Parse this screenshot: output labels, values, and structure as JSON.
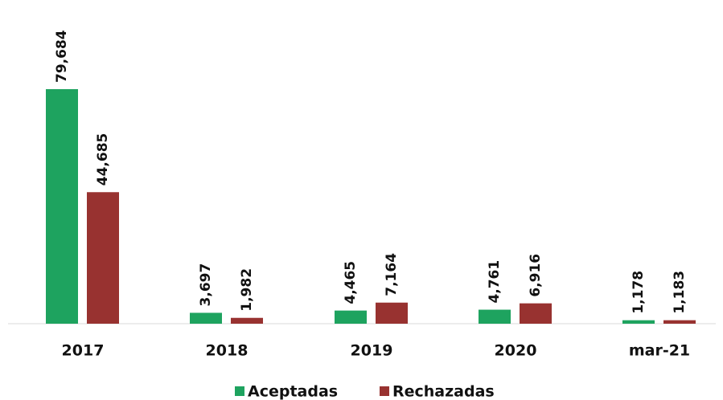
{
  "chart_data": {
    "type": "bar",
    "categories": [
      "2017",
      "2018",
      "2019",
      "2020",
      "mar-21"
    ],
    "series": [
      {
        "name": "Aceptadas",
        "color": "#1ea35f",
        "values": [
          79684,
          3697,
          4465,
          4761,
          1178
        ],
        "value_labels": [
          "79,684",
          "3,697",
          "4,465",
          "4,761",
          "1,178"
        ]
      },
      {
        "name": "Rechazadas",
        "color": "#983230",
        "values": [
          44685,
          1982,
          7164,
          6916,
          1183
        ],
        "value_labels": [
          "44,685",
          "1,982",
          "7,164",
          "6,916",
          "1,183"
        ]
      }
    ]
  }
}
